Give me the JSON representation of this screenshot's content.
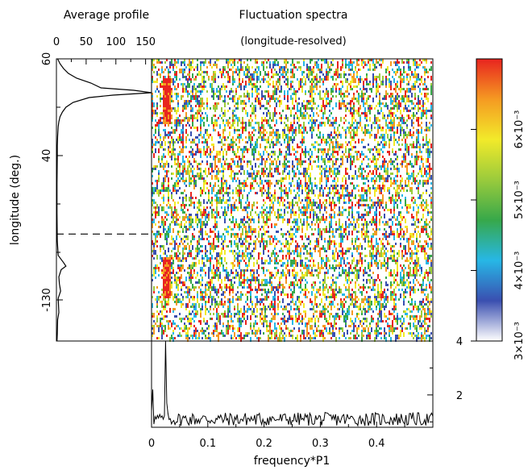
{
  "chart_data": [
    {
      "type": "line",
      "panel": "average-profile",
      "title": "Average profile",
      "xlabel": "",
      "ylabel": "longitude (deg.)",
      "x_ticks": [
        "0",
        "50",
        "100",
        "150"
      ],
      "y_ticks": [
        "60",
        "40",
        "-130"
      ],
      "xlim": [
        0,
        160
      ],
      "profile": [
        [
          60,
          2
        ],
        [
          59,
          6
        ],
        [
          58,
          12
        ],
        [
          57,
          20
        ],
        [
          56,
          34
        ],
        [
          55,
          58
        ],
        [
          54,
          75
        ],
        [
          53.5,
          130
        ],
        [
          53,
          160
        ],
        [
          52.5,
          95
        ],
        [
          52,
          55
        ],
        [
          51,
          28
        ],
        [
          50,
          16
        ],
        [
          49,
          10
        ],
        [
          48,
          6
        ],
        [
          47,
          4
        ],
        [
          46,
          3
        ],
        [
          44,
          2
        ],
        [
          42,
          1.5
        ],
        [
          40,
          1.5
        ],
        [
          36,
          1
        ],
        [
          32,
          1
        ],
        [
          28,
          1.5
        ],
        [
          26,
          3
        ],
        [
          25,
          12
        ],
        [
          24.5,
          16
        ],
        [
          24,
          8
        ],
        [
          23,
          4
        ],
        [
          22,
          5
        ],
        [
          21,
          7
        ],
        [
          20,
          3
        ],
        [
          18,
          4
        ],
        [
          17,
          2
        ],
        [
          15,
          1.5
        ],
        [
          14,
          1
        ]
      ],
      "dashed_marker_longitude": 29
    },
    {
      "type": "heatmap",
      "panel": "fluctuation-spectra",
      "title": "Fluctuation spectra",
      "subtitle": "(longitude-resolved)",
      "colorbar": {
        "range": [
          0.003,
          0.007
        ],
        "ticks": [
          {
            "value": 0.003,
            "label": "3×10⁻³"
          },
          {
            "value": 0.004,
            "label": "4×10⁻³"
          },
          {
            "value": 0.005,
            "label": "5×10⁻³"
          },
          {
            "value": 0.006,
            "label": "6×10⁻³"
          }
        ],
        "colors": [
          "#ffffff",
          "#3a4fb0",
          "#27b7e6",
          "#37a84a",
          "#9acb3c",
          "#f2ea2a",
          "#f59a22",
          "#e8241f"
        ]
      },
      "bright_frequency": 0.025,
      "bright_longitude_bands": [
        [
          47,
          56
        ],
        [
          20,
          26
        ]
      ]
    },
    {
      "type": "line",
      "panel": "integrated-spectrum",
      "xlabel": "frequency*P1",
      "x_ticks": [
        "0",
        "0.1",
        "0.2",
        "0.3",
        "0.4"
      ],
      "y_ticks": [
        "2",
        "4"
      ],
      "xlim": [
        0,
        0.5
      ],
      "ylim": [
        0.8,
        4
      ],
      "peaks": [
        {
          "x": 0.003,
          "y": 2.2
        },
        {
          "x": 0.025,
          "y": 4.0
        },
        {
          "x": 0.028,
          "y": 1.7
        }
      ],
      "baseline": 1.1
    }
  ]
}
